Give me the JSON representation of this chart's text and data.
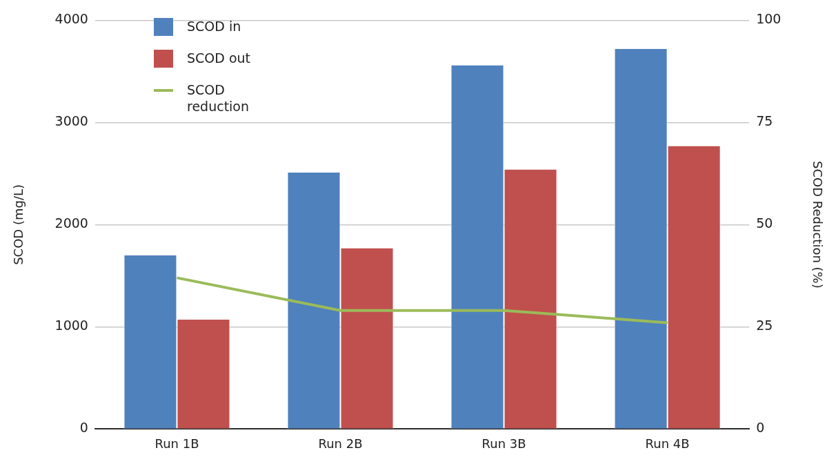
{
  "chart_data": {
    "type": "bar",
    "categories": [
      "Run 1B",
      "Run 2B",
      "Run 3B",
      "Run 4B"
    ],
    "series": [
      {
        "name": "SCOD in",
        "color": "#4f81bd",
        "values": [
          1700,
          2510,
          3560,
          3720
        ]
      },
      {
        "name": "SCOD out",
        "color": "#c0504d",
        "values": [
          1070,
          1770,
          2540,
          2770
        ]
      },
      {
        "name": "SCOD reduction",
        "type": "line",
        "axis": "y2",
        "color": "#9bbb59",
        "values": [
          37,
          29,
          29,
          26
        ]
      }
    ],
    "ylabel": "SCOD (mg/L)",
    "y2label": "SCOD Reduction (%)",
    "ylim": [
      0,
      4000
    ],
    "yticks": [
      0,
      1000,
      2000,
      3000,
      4000
    ],
    "y2lim": [
      0,
      100
    ],
    "y2ticks": [
      0,
      25,
      50,
      75,
      100
    ],
    "grid": "y",
    "legend": "top left"
  }
}
